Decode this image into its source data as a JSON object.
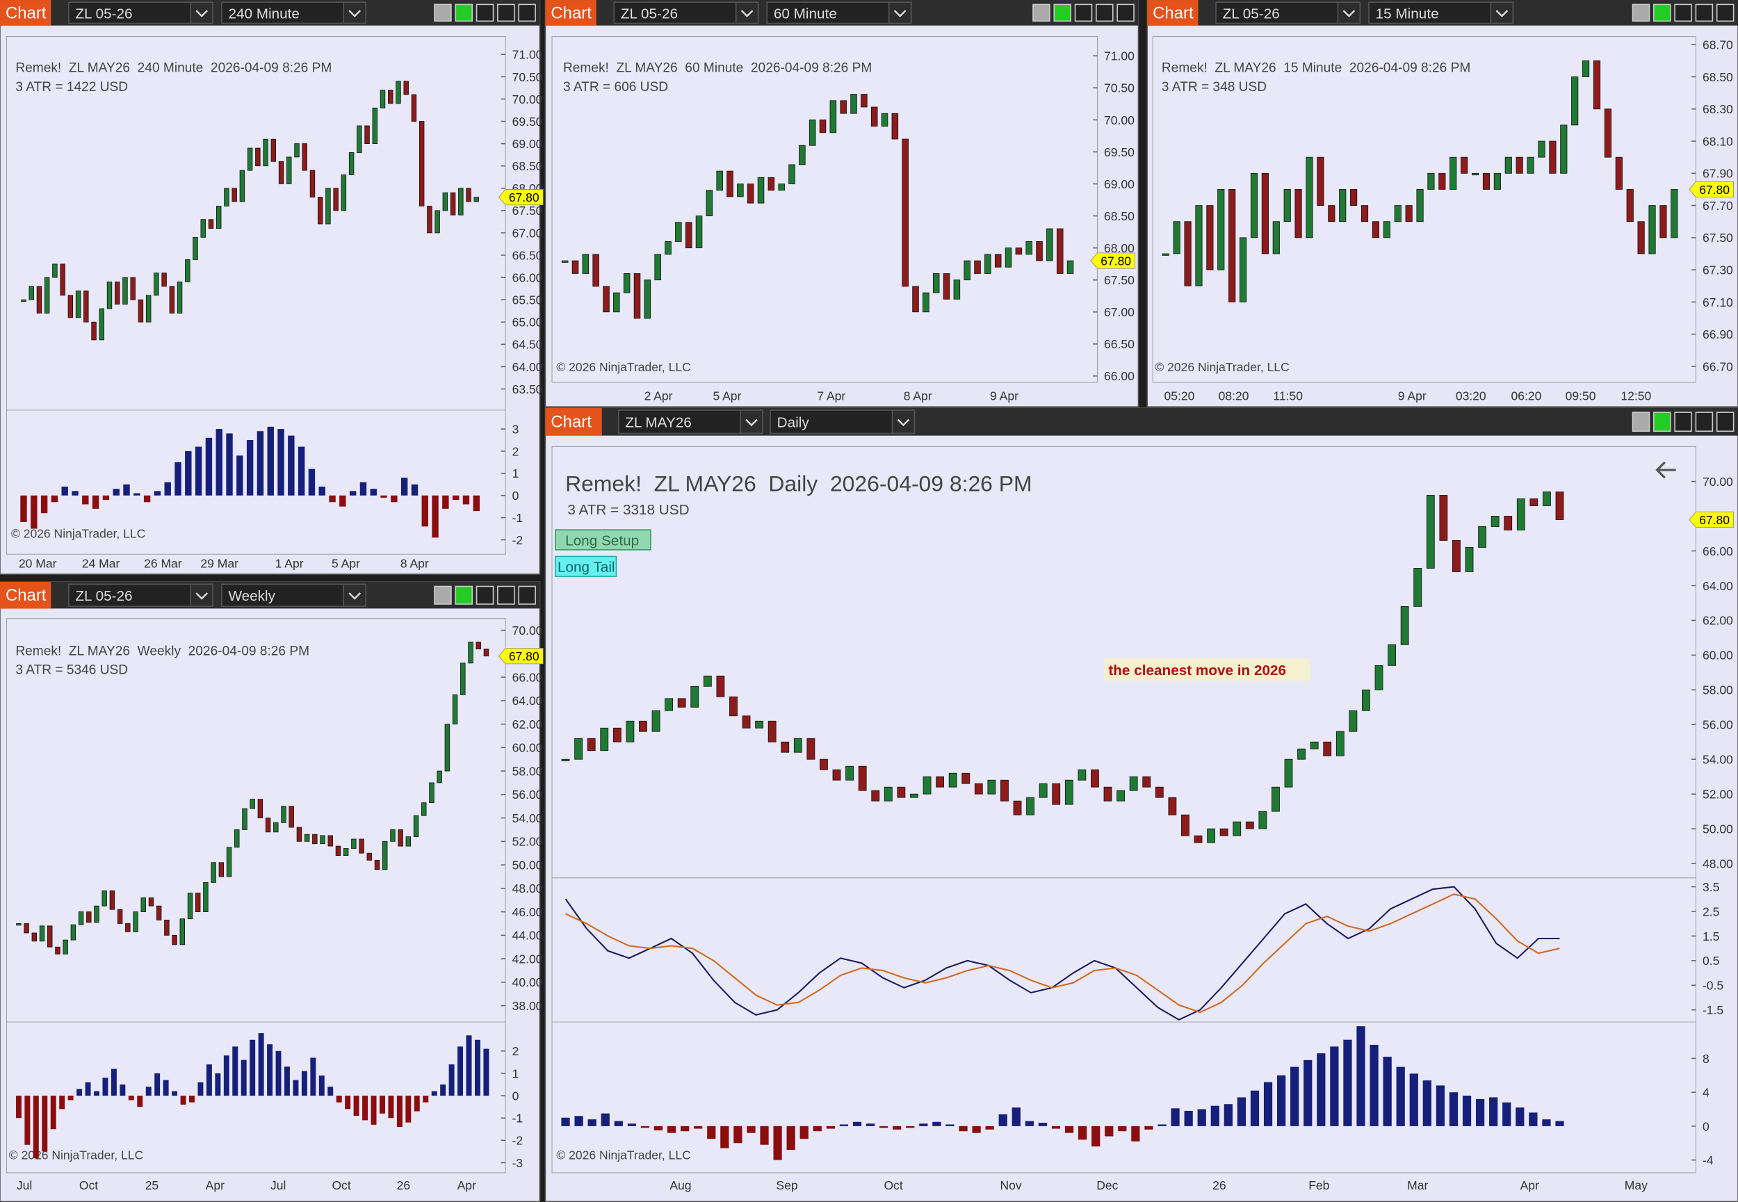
{
  "windows": [
    {
      "tab": "Chart",
      "instrument": "ZL 05-26",
      "timeframe": "240 Minute",
      "header": "Remek!  ZL MAY26  240 Minute  2026-04-09 8:26 PM",
      "atr": "3 ATR = 1422 USD",
      "copyright": "© 2026 NinjaTrader, LLC",
      "last": {
        "value": 67.8,
        "label": "67.80"
      },
      "ylim": [
        63.1,
        71.4
      ],
      "yticks": [
        {
          "value": 71,
          "label": "71.00"
        },
        {
          "value": 70.5,
          "label": "70.50"
        },
        {
          "value": 70,
          "label": "70.00"
        },
        {
          "value": 69.5,
          "label": "69.50"
        },
        {
          "value": 69,
          "label": "69.00"
        },
        {
          "value": 68.5,
          "label": "68.50"
        },
        {
          "value": 68,
          "label": "68.00"
        },
        {
          "value": 67.5,
          "label": "67.50"
        },
        {
          "value": 67,
          "label": "67.00"
        },
        {
          "value": 66.5,
          "label": "66.50"
        },
        {
          "value": 66,
          "label": "66.00"
        },
        {
          "value": 65.5,
          "label": "65.50"
        },
        {
          "value": 65,
          "label": "65.00"
        },
        {
          "value": 64.5,
          "label": "64.50"
        },
        {
          "value": 64,
          "label": "64.00"
        },
        {
          "value": 63.5,
          "label": "63.50"
        }
      ],
      "time_labels": [
        "20 Mar",
        "24 Mar",
        "26 Mar",
        "29 Mar",
        "1 Apr",
        "5 Apr",
        "8 Apr"
      ],
      "closes": [
        65.5,
        65.8,
        65.2,
        66.0,
        66.3,
        65.6,
        65.1,
        65.7,
        65.0,
        64.6,
        65.3,
        65.9,
        65.4,
        66.0,
        65.5,
        65.0,
        65.6,
        66.1,
        65.8,
        65.2,
        65.9,
        66.4,
        66.9,
        67.3,
        67.1,
        67.6,
        68.0,
        67.7,
        68.4,
        68.9,
        68.5,
        69.1,
        68.6,
        68.1,
        68.7,
        69.0,
        68.4,
        67.8,
        67.2,
        68.0,
        67.5,
        68.3,
        68.8,
        69.4,
        69.0,
        69.8,
        70.2,
        69.9,
        70.4,
        70.1,
        69.5,
        67.6,
        67.0,
        67.5,
        67.9,
        67.4,
        68.0,
        67.7,
        67.8
      ],
      "indicator": {
        "ylim": [
          -2.65,
          3.85
        ],
        "yticks": [
          3,
          2,
          1,
          0,
          -1,
          -2
        ],
        "values": [
          -1.2,
          -1.5,
          -0.8,
          -0.3,
          0.4,
          0.2,
          -0.4,
          -0.6,
          -0.2,
          0.3,
          0.5,
          0.1,
          -0.3,
          0.2,
          0.6,
          1.5,
          2.0,
          2.2,
          2.6,
          3.0,
          2.8,
          1.8,
          2.5,
          2.9,
          3.1,
          3.0,
          2.7,
          2.2,
          1.2,
          0.4,
          -0.3,
          -0.5,
          0.2,
          0.6,
          0.3,
          -0.1,
          -0.3,
          0.8,
          0.5,
          -1.4,
          -1.9,
          -0.6,
          -0.2,
          -0.4,
          -0.7
        ]
      }
    },
    {
      "tab": "Chart",
      "instrument": "ZL 05-26",
      "timeframe": "60 Minute",
      "header": "Remek!  ZL MAY26  60 Minute  2026-04-09 8:26 PM",
      "atr": "3 ATR = 606 USD",
      "copyright": "© 2026 NinjaTrader, LLC",
      "last": {
        "value": 67.8,
        "label": "67.80"
      },
      "ylim": [
        65.9,
        71.3
      ],
      "yticks": [
        {
          "value": 71,
          "label": "71.00"
        },
        {
          "value": 70.5,
          "label": "70.50"
        },
        {
          "value": 70,
          "label": "70.00"
        },
        {
          "value": 69.5,
          "label": "69.50"
        },
        {
          "value": 69,
          "label": "69.00"
        },
        {
          "value": 68.5,
          "label": "68.50"
        },
        {
          "value": 68,
          "label": "68.00"
        },
        {
          "value": 67.5,
          "label": "67.50"
        },
        {
          "value": 67,
          "label": "67.00"
        },
        {
          "value": 66.5,
          "label": "66.50"
        },
        {
          "value": 66,
          "label": "66.00"
        }
      ],
      "time_labels": [
        "2 Apr",
        "5 Apr",
        "7 Apr",
        "8 Apr",
        "9 Apr"
      ],
      "closes": [
        67.8,
        67.6,
        67.9,
        67.4,
        67.0,
        67.3,
        67.6,
        66.9,
        67.5,
        67.9,
        68.1,
        68.4,
        68.0,
        68.5,
        68.9,
        69.2,
        68.8,
        69.0,
        68.7,
        69.1,
        68.9,
        69.0,
        69.3,
        69.6,
        70.0,
        69.8,
        70.3,
        70.1,
        70.4,
        70.2,
        69.9,
        70.1,
        69.7,
        67.4,
        67.0,
        67.3,
        67.6,
        67.2,
        67.5,
        67.8,
        67.6,
        67.9,
        67.7,
        68.0,
        67.9,
        68.1,
        67.8,
        68.3,
        67.6,
        67.8
      ]
    },
    {
      "tab": "Chart",
      "instrument": "ZL 05-26",
      "timeframe": "15 Minute",
      "header": "Remek!  ZL MAY26  15 Minute  2026-04-09 8:26 PM",
      "atr": "3 ATR = 348 USD",
      "copyright": "© 2026 NinjaTrader, LLC",
      "last": {
        "value": 67.8,
        "label": "67.80"
      },
      "ylim": [
        66.6,
        68.75
      ],
      "yticks": [
        {
          "value": 68.7,
          "label": "68.70"
        },
        {
          "value": 68.5,
          "label": "68.50"
        },
        {
          "value": 68.3,
          "label": "68.30"
        },
        {
          "value": 68.1,
          "label": "68.10"
        },
        {
          "value": 67.9,
          "label": "67.90"
        },
        {
          "value": 67.7,
          "label": "67.70"
        },
        {
          "value": 67.5,
          "label": "67.50"
        },
        {
          "value": 67.3,
          "label": "67.30"
        },
        {
          "value": 67.1,
          "label": "67.10"
        },
        {
          "value": 66.9,
          "label": "66.90"
        },
        {
          "value": 66.7,
          "label": "66.70"
        }
      ],
      "time_labels": [
        "05:20",
        "08:20",
        "11:50",
        "9 Apr",
        "03:20",
        "06:20",
        "09:50",
        "12:50"
      ],
      "closes": [
        67.4,
        67.6,
        67.2,
        67.7,
        67.3,
        67.8,
        67.1,
        67.5,
        67.9,
        67.4,
        67.6,
        67.8,
        67.5,
        68.0,
        67.7,
        67.6,
        67.8,
        67.7,
        67.6,
        67.5,
        67.6,
        67.7,
        67.6,
        67.8,
        67.9,
        67.8,
        68.0,
        67.9,
        67.9,
        67.8,
        67.9,
        68.0,
        67.9,
        68.0,
        68.1,
        67.9,
        68.2,
        68.5,
        68.6,
        68.3,
        68.0,
        67.8,
        67.6,
        67.4,
        67.7,
        67.5,
        67.8
      ]
    },
    {
      "tab": "Chart",
      "instrument": "ZL 05-26",
      "timeframe": "Weekly",
      "header": "Remek!  ZL MAY26  Weekly  2026-04-09 8:26 PM",
      "atr": "3 ATR = 5346 USD",
      "copyright": "© 2026 NinjaTrader, LLC",
      "last": {
        "value": 67.8,
        "label": "67.80"
      },
      "ylim": [
        36.8,
        71.0
      ],
      "yticks": [
        {
          "value": 70,
          "label": "70.00"
        },
        {
          "value": 66,
          "label": "66.00"
        },
        {
          "value": 64,
          "label": "64.00"
        },
        {
          "value": 62,
          "label": "62.00"
        },
        {
          "value": 60,
          "label": "60.00"
        },
        {
          "value": 58,
          "label": "58.00"
        },
        {
          "value": 56,
          "label": "56.00"
        },
        {
          "value": 54,
          "label": "54.00"
        },
        {
          "value": 52,
          "label": "52.00"
        },
        {
          "value": 50,
          "label": "50.00"
        },
        {
          "value": 48,
          "label": "48.00"
        },
        {
          "value": 46,
          "label": "46.00"
        },
        {
          "value": 44,
          "label": "44.00"
        },
        {
          "value": 42,
          "label": "42.00"
        },
        {
          "value": 40,
          "label": "40.00"
        },
        {
          "value": 38,
          "label": "38.00"
        }
      ],
      "time_labels": [
        "Jul",
        "Oct",
        "25",
        "Apr",
        "Jul",
        "Oct",
        "26",
        "Apr"
      ],
      "closes": [
        45.0,
        44.2,
        43.5,
        44.8,
        43.0,
        42.4,
        43.6,
        44.9,
        46.0,
        45.1,
        46.5,
        47.8,
        46.2,
        45.0,
        44.3,
        46.0,
        47.2,
        46.5,
        45.3,
        44.0,
        43.2,
        45.4,
        47.6,
        46.0,
        48.5,
        50.2,
        49.0,
        51.5,
        53.0,
        54.8,
        55.6,
        54.0,
        52.8,
        53.6,
        55.0,
        53.2,
        52.0,
        52.6,
        51.8,
        52.5,
        51.6,
        50.8,
        51.4,
        52.2,
        51.0,
        50.4,
        49.6,
        52.0,
        53.0,
        51.6,
        52.4,
        54.2,
        55.3,
        57.0,
        58.0,
        62.0,
        64.5,
        67.2,
        69.0,
        68.4,
        67.8
      ],
      "indicator": {
        "ylim": [
          -3.45,
          3.3
        ],
        "yticks": [
          2,
          1,
          0,
          -1,
          -2,
          -3
        ],
        "values": [
          -1.0,
          -2.2,
          -2.8,
          -2.5,
          -1.5,
          -0.6,
          -0.2,
          0.3,
          0.6,
          0.2,
          0.8,
          1.2,
          0.5,
          -0.2,
          -0.5,
          0.4,
          1.0,
          0.7,
          0.2,
          -0.4,
          -0.3,
          0.6,
          1.4,
          1.0,
          1.8,
          2.2,
          1.6,
          2.5,
          2.8,
          2.3,
          2.0,
          1.3,
          0.7,
          1.1,
          1.7,
          0.9,
          0.4,
          -0.3,
          -0.6,
          -0.9,
          -1.1,
          -1.3,
          -0.8,
          -1.0,
          -1.4,
          -1.2,
          -0.7,
          -0.3,
          0.2,
          0.5,
          1.4,
          2.2,
          2.7,
          2.5,
          2.1
        ]
      }
    },
    {
      "tab": "Chart",
      "instrument": "ZL MAY26",
      "timeframe": "Daily",
      "header": "Remek!  ZL MAY26  Daily  2026-04-09 8:26 PM",
      "atr": "3 ATR = 3318 USD",
      "copyright": "© 2026 NinjaTrader, LLC",
      "buttons": [
        "Long Setup",
        "Long Tail"
      ],
      "annotation": "the cleanest move in 2026",
      "last": {
        "value": 67.8,
        "label": "67.80"
      },
      "ylim": [
        47.3,
        72.0
      ],
      "yticks": [
        {
          "value": 70,
          "label": "70.00"
        },
        {
          "value": 66,
          "label": "66.00"
        },
        {
          "value": 64,
          "label": "64.00"
        },
        {
          "value": 62,
          "label": "62.00"
        },
        {
          "value": 60,
          "label": "60.00"
        },
        {
          "value": 58,
          "label": "58.00"
        },
        {
          "value": 56,
          "label": "56.00"
        },
        {
          "value": 54,
          "label": "54.00"
        },
        {
          "value": 52,
          "label": "52.00"
        },
        {
          "value": 50,
          "label": "50.00"
        },
        {
          "value": 48,
          "label": "48.00"
        }
      ],
      "time_labels": [
        "Aug",
        "Sep",
        "Oct",
        "Nov",
        "Dec",
        "26",
        "Feb",
        "Mar",
        "Apr",
        "May"
      ],
      "closes": [
        54.0,
        55.2,
        54.5,
        55.8,
        55.0,
        56.2,
        55.6,
        56.8,
        57.5,
        57.0,
        58.2,
        58.8,
        57.6,
        56.5,
        55.8,
        56.2,
        55.0,
        54.4,
        55.2,
        54.0,
        53.4,
        52.8,
        53.6,
        52.2,
        51.6,
        52.4,
        51.8,
        52.0,
        53.0,
        52.4,
        53.2,
        52.6,
        52.0,
        52.8,
        51.6,
        50.8,
        51.8,
        52.6,
        51.4,
        52.8,
        53.4,
        52.4,
        51.6,
        52.2,
        53.0,
        52.4,
        51.8,
        50.8,
        49.6,
        49.2,
        50.0,
        49.6,
        50.4,
        50.0,
        51.0,
        52.4,
        54.0,
        54.6,
        55.0,
        54.2,
        55.6,
        56.8,
        58.0,
        59.4,
        60.6,
        62.8,
        65.0,
        69.2,
        66.6,
        64.8,
        66.2,
        67.4,
        68.0,
        67.2,
        69.0,
        68.6,
        69.4,
        67.8
      ],
      "macd": {
        "ylim": [
          -1.9,
          3.86
        ],
        "yticks": [
          3.5,
          2.5,
          1.5,
          0.5,
          -0.5,
          -1.5
        ],
        "series": [
          {
            "color": "#1a1a5e",
            "values": [
              3.0,
              1.8,
              0.9,
              0.6,
              1.0,
              1.4,
              0.8,
              -0.3,
              -1.2,
              -1.7,
              -1.5,
              -0.8,
              0.0,
              0.6,
              0.4,
              -0.2,
              -0.6,
              -0.3,
              0.2,
              0.5,
              0.3,
              -0.3,
              -0.8,
              -0.6,
              0.0,
              0.5,
              0.2,
              -0.6,
              -1.4,
              -1.9,
              -1.5,
              -0.6,
              0.4,
              1.4,
              2.4,
              2.8,
              2.0,
              1.4,
              1.8,
              2.6,
              3.0,
              3.4,
              3.5,
              2.6,
              1.2,
              0.6,
              1.4,
              1.4
            ]
          },
          {
            "color": "#d2691e",
            "values": [
              2.4,
              2.0,
              1.5,
              1.1,
              1.0,
              1.1,
              1.0,
              0.5,
              -0.2,
              -0.9,
              -1.3,
              -1.2,
              -0.7,
              -0.1,
              0.2,
              0.1,
              -0.2,
              -0.4,
              -0.2,
              0.1,
              0.3,
              0.1,
              -0.3,
              -0.6,
              -0.4,
              0.1,
              0.2,
              -0.1,
              -0.7,
              -1.3,
              -1.6,
              -1.2,
              -0.5,
              0.4,
              1.2,
              2.0,
              2.3,
              1.9,
              1.7,
              2.0,
              2.4,
              2.8,
              3.2,
              3.0,
              2.2,
              1.3,
              0.8,
              1.0
            ]
          }
        ]
      },
      "indicator": {
        "ylim": [
          -5.5,
          12.3
        ],
        "yticks": [
          8,
          4,
          0,
          -4
        ],
        "values": [
          1.0,
          1.2,
          0.8,
          1.5,
          0.6,
          0.3,
          -0.2,
          -0.5,
          -0.8,
          -0.6,
          -0.3,
          -1.5,
          -2.6,
          -2.0,
          -0.8,
          -2.2,
          -4.0,
          -2.8,
          -1.5,
          -0.6,
          -0.3,
          0.2,
          0.5,
          0.3,
          -0.2,
          -0.4,
          -0.2,
          0.3,
          0.5,
          0.2,
          -0.6,
          -0.8,
          -0.4,
          1.4,
          2.2,
          0.6,
          0.4,
          -0.3,
          -0.8,
          -1.6,
          -2.4,
          -1.2,
          -0.6,
          -1.8,
          -0.4,
          0.2,
          2.1,
          1.8,
          2.0,
          2.4,
          2.6,
          3.4,
          4.2,
          5.2,
          6.0,
          7.0,
          7.8,
          8.6,
          9.4,
          10.2,
          11.8,
          9.6,
          8.2,
          7.0,
          6.2,
          5.4,
          4.8,
          4.0,
          3.6,
          3.2,
          3.4,
          2.8,
          2.2,
          1.6,
          0.8,
          0.6
        ]
      }
    }
  ]
}
